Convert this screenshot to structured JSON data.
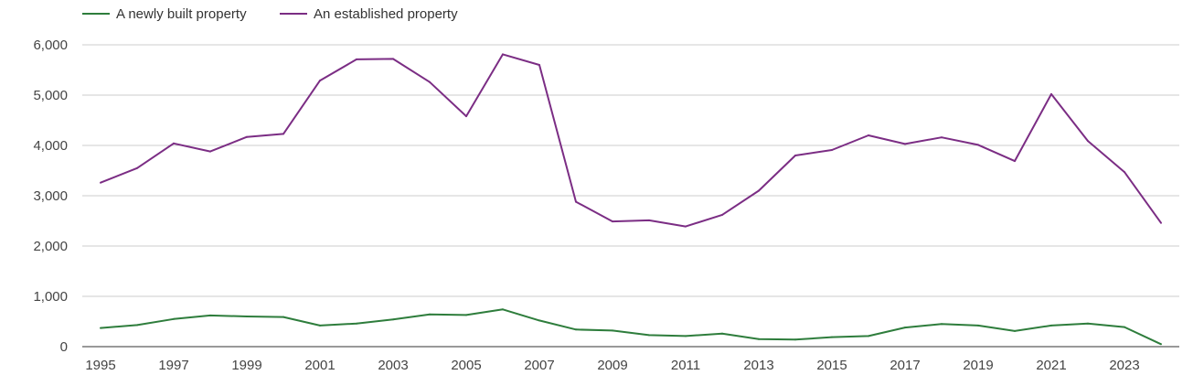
{
  "chart_data": {
    "type": "line",
    "x": [
      1995,
      1996,
      1997,
      1998,
      1999,
      2000,
      2001,
      2002,
      2003,
      2004,
      2005,
      2006,
      2007,
      2008,
      2009,
      2010,
      2011,
      2012,
      2013,
      2014,
      2015,
      2016,
      2017,
      2018,
      2019,
      2020,
      2021,
      2022,
      2023,
      2024
    ],
    "series": [
      {
        "name": "A newly built property",
        "color": "#2e7d3c",
        "values": [
          370,
          430,
          550,
          620,
          600,
          590,
          420,
          460,
          540,
          640,
          630,
          740,
          520,
          340,
          320,
          230,
          210,
          260,
          150,
          140,
          190,
          210,
          380,
          450,
          420,
          310,
          420,
          460,
          390,
          50
        ]
      },
      {
        "name": "An established property",
        "color": "#7b2d84",
        "values": [
          3260,
          3550,
          4040,
          3880,
          4170,
          4230,
          5290,
          5710,
          5720,
          5260,
          4580,
          5810,
          5600,
          2880,
          2490,
          2510,
          2390,
          2620,
          3100,
          3800,
          3910,
          4200,
          4030,
          4160,
          4010,
          3690,
          5020,
          4090,
          3470,
          2460
        ]
      }
    ],
    "y_ticks": [
      "6,000",
      "5,000",
      "4,000",
      "3,000",
      "2,000",
      "1,000",
      "0"
    ],
    "x_ticks": [
      "1995",
      "1997",
      "1999",
      "2001",
      "2003",
      "2005",
      "2007",
      "2009",
      "2011",
      "2013",
      "2015",
      "2017",
      "2019",
      "2021",
      "2023"
    ],
    "ylim": [
      0,
      6000
    ],
    "xlim": [
      1995,
      2024
    ],
    "grid": true,
    "legend_position": "top-left",
    "title": "",
    "xlabel": "",
    "ylabel": ""
  }
}
